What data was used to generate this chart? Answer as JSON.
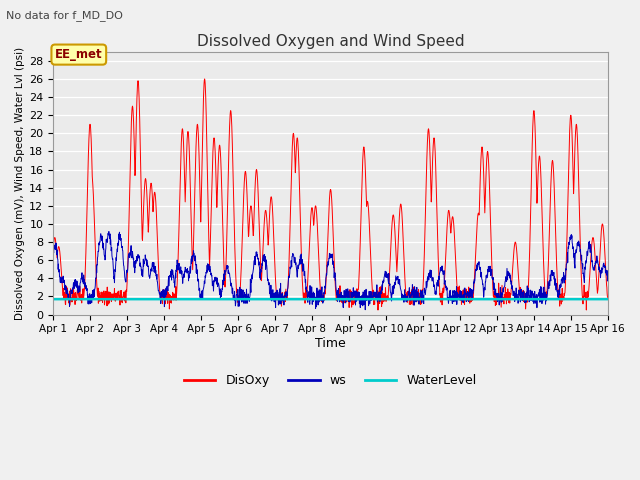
{
  "title": "Dissolved Oxygen and Wind Speed",
  "subtitle": "No data for f_MD_DO",
  "xlabel": "Time",
  "ylabel": "Dissolved Oxygen (mV), Wind Speed, Water Lvl (psi)",
  "ylim": [
    0,
    29
  ],
  "yticks": [
    0,
    2,
    4,
    6,
    8,
    10,
    12,
    14,
    16,
    18,
    20,
    22,
    24,
    26,
    28
  ],
  "xtick_labels": [
    "Apr 1",
    "Apr 2",
    "Apr 3",
    "Apr 4",
    "Apr 5",
    "Apr 6",
    "Apr 7",
    "Apr 8",
    "Apr 9",
    "Apr 10",
    "Apr 11",
    "Apr 12",
    "Apr 13",
    "Apr 14",
    "Apr 15",
    "Apr 16"
  ],
  "annotation_text": "EE_met",
  "plot_bg_color": "#ebebeb",
  "fig_bg_color": "#f0f0f0",
  "water_level_value": 1.7,
  "line_colors": {
    "DisOxy": "#ff0000",
    "ws": "#0000bb",
    "WaterLevel": "#00cccc"
  },
  "legend_labels": [
    "DisOxy",
    "ws",
    "WaterLevel"
  ]
}
